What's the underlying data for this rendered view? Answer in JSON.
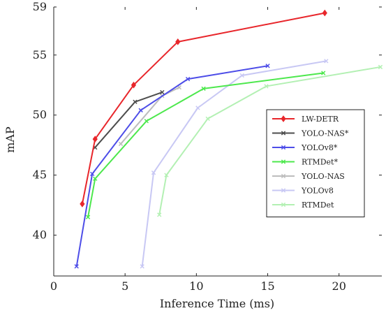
{
  "chart_data": {
    "type": "line",
    "xlabel": "Inference Time (ms)",
    "ylabel": "mAP",
    "xlim": [
      0,
      23
    ],
    "ylim": [
      36.6,
      59
    ],
    "xticks": [
      0,
      5,
      10,
      15,
      20
    ],
    "yticks": [
      40,
      45,
      50,
      55,
      59
    ],
    "grid": false,
    "legend_position": "right",
    "series": [
      {
        "name": "LW-DETR",
        "color": "#e8262b",
        "marker": "diamond",
        "x": [
          2.0,
          2.9,
          5.6,
          8.7,
          19.0
        ],
        "y": [
          42.6,
          48.0,
          52.5,
          56.1,
          58.5
        ]
      },
      {
        "name": "YOLO-NAS*",
        "color": "#4d4d4d",
        "marker": "x",
        "x": [
          2.9,
          5.7,
          7.6
        ],
        "y": [
          47.3,
          51.1,
          51.9
        ]
      },
      {
        "name": "YOLOv8*",
        "color": "#4d4de8",
        "marker": "x",
        "x": [
          1.6,
          2.7,
          6.1,
          9.4,
          15.0
        ],
        "y": [
          37.4,
          45.1,
          50.4,
          53.0,
          54.1
        ]
      },
      {
        "name": "RTMDet*",
        "color": "#4de84d",
        "marker": "x",
        "x": [
          2.4,
          2.9,
          6.5,
          10.5,
          18.9
        ],
        "y": [
          41.5,
          44.7,
          49.5,
          52.2,
          53.5
        ]
      },
      {
        "name": "YOLO-NAS",
        "color": "#bdbdbd",
        "marker": "x",
        "x": [
          4.7,
          7.6,
          8.8
        ],
        "y": [
          47.6,
          51.6,
          52.3
        ]
      },
      {
        "name": "YOLOv8",
        "color": "#c8c8f4",
        "marker": "x",
        "x": [
          6.2,
          7.0,
          10.1,
          13.2,
          19.1
        ],
        "y": [
          37.4,
          45.2,
          50.6,
          53.3,
          54.5
        ]
      },
      {
        "name": "RTMDet",
        "color": "#b3f0b3",
        "marker": "x",
        "x": [
          7.4,
          7.9,
          10.8,
          14.9,
          22.9
        ],
        "y": [
          41.7,
          45.0,
          49.7,
          52.4,
          54.0
        ]
      }
    ]
  }
}
